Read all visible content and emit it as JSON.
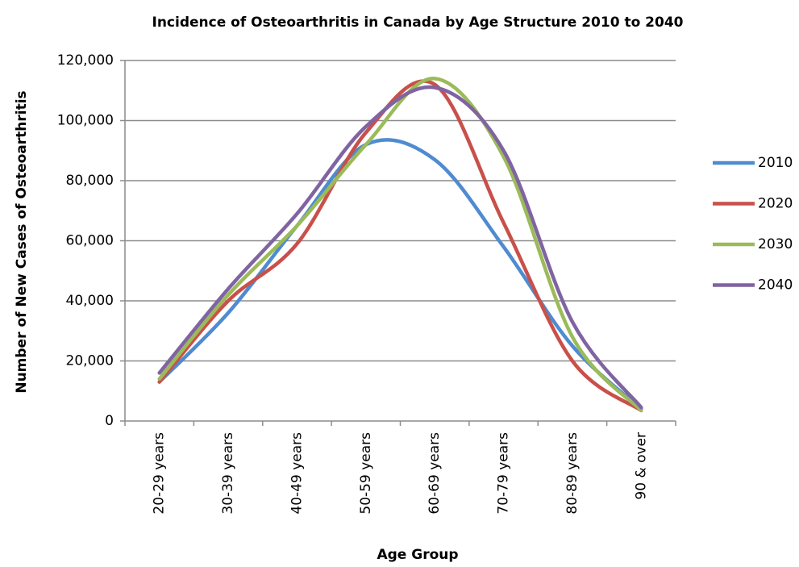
{
  "chart_data": {
    "type": "line",
    "title": "Incidence of Osteoarthritis in Canada by Age Structure 2010 to 2040",
    "x_label": "Age Group",
    "y_label": "Number of New Cases of Osteoarthritis",
    "categories": [
      "20-29 years",
      "30-39 years",
      "40-49 years",
      "50-59 years",
      "60-69 years",
      "70-79 years",
      "80-89 years",
      "90 & over"
    ],
    "series": [
      {
        "name": "2010",
        "color": "#4f8bd0",
        "values": [
          13000,
          36000,
          65000,
          92000,
          87000,
          58000,
          25000,
          4000
        ]
      },
      {
        "name": "2020",
        "color": "#c9504a",
        "values": [
          13000,
          40000,
          59000,
          96000,
          112000,
          66000,
          20000,
          3500
        ]
      },
      {
        "name": "2030",
        "color": "#9bbb59",
        "values": [
          14000,
          42000,
          65000,
          92000,
          114000,
          88000,
          28000,
          3500
        ]
      },
      {
        "name": "2040",
        "color": "#8064a2",
        "values": [
          16000,
          44000,
          69000,
          98000,
          111000,
          90000,
          33000,
          4500
        ]
      }
    ],
    "ylim": [
      0,
      120000
    ],
    "yticks": [
      0,
      {
        "value": 20000,
        "label": "20,000"
      },
      {
        "value": 40000,
        "label": "40,000"
      },
      {
        "value": 60000,
        "label": "60,000"
      },
      {
        "value": 80000,
        "label": "80,000"
      },
      {
        "value": 100000,
        "label": "100,000"
      },
      {
        "value": 120000,
        "label": "120,000"
      }
    ],
    "grid": true,
    "smooth": true,
    "legend": "right"
  }
}
